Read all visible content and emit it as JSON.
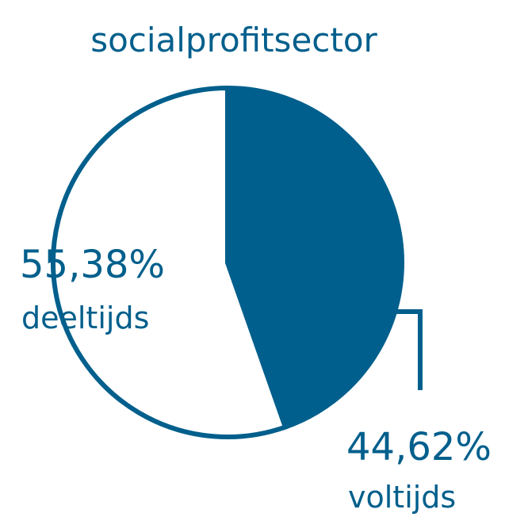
{
  "chart_data": {
    "type": "pie",
    "title": "socialprofitsector",
    "categories": [
      "voltijds",
      "deeltijds"
    ],
    "values": [
      44.62,
      55.38
    ],
    "value_labels": [
      "44,62%",
      "55,38%"
    ],
    "colors": [
      "#005f8c",
      "#ffffff"
    ],
    "start_angle": 0,
    "direction": "clockwise"
  }
}
